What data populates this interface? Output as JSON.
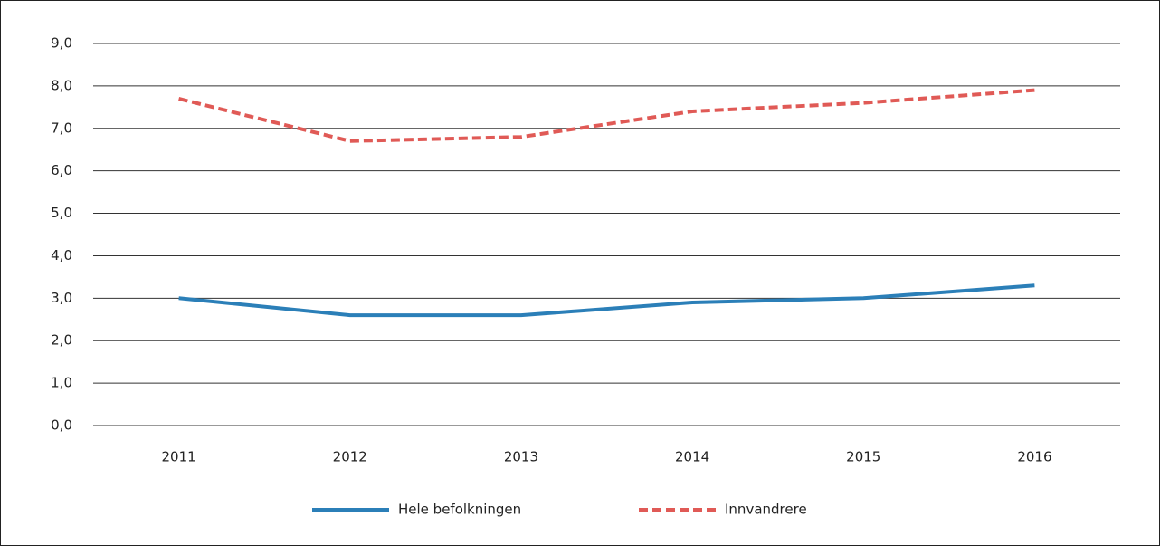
{
  "chart_data": {
    "type": "line",
    "categories": [
      "2011",
      "2012",
      "2013",
      "2014",
      "2015",
      "2016"
    ],
    "series": [
      {
        "name": "Hele befolkningen",
        "color": "#2b7fb8",
        "dashed": false,
        "values": [
          3.0,
          2.6,
          2.6,
          2.9,
          3.0,
          3.3
        ]
      },
      {
        "name": "Innvandrere",
        "color": "#e05a56",
        "dashed": true,
        "values": [
          7.7,
          6.7,
          6.8,
          7.4,
          7.6,
          7.9
        ]
      }
    ],
    "ylim": [
      0,
      9
    ],
    "yticks": [
      {
        "value": 0,
        "label": "0,0"
      },
      {
        "value": 1,
        "label": "1,0"
      },
      {
        "value": 2,
        "label": "2,0"
      },
      {
        "value": 3,
        "label": "3,0"
      },
      {
        "value": 4,
        "label": "4,0"
      },
      {
        "value": 5,
        "label": "5,0"
      },
      {
        "value": 6,
        "label": "6,0"
      },
      {
        "value": 7,
        "label": "7,0"
      },
      {
        "value": 8,
        "label": "8,0"
      },
      {
        "value": 9,
        "label": "9,0"
      }
    ],
    "grid": true,
    "legend": "bottom"
  }
}
